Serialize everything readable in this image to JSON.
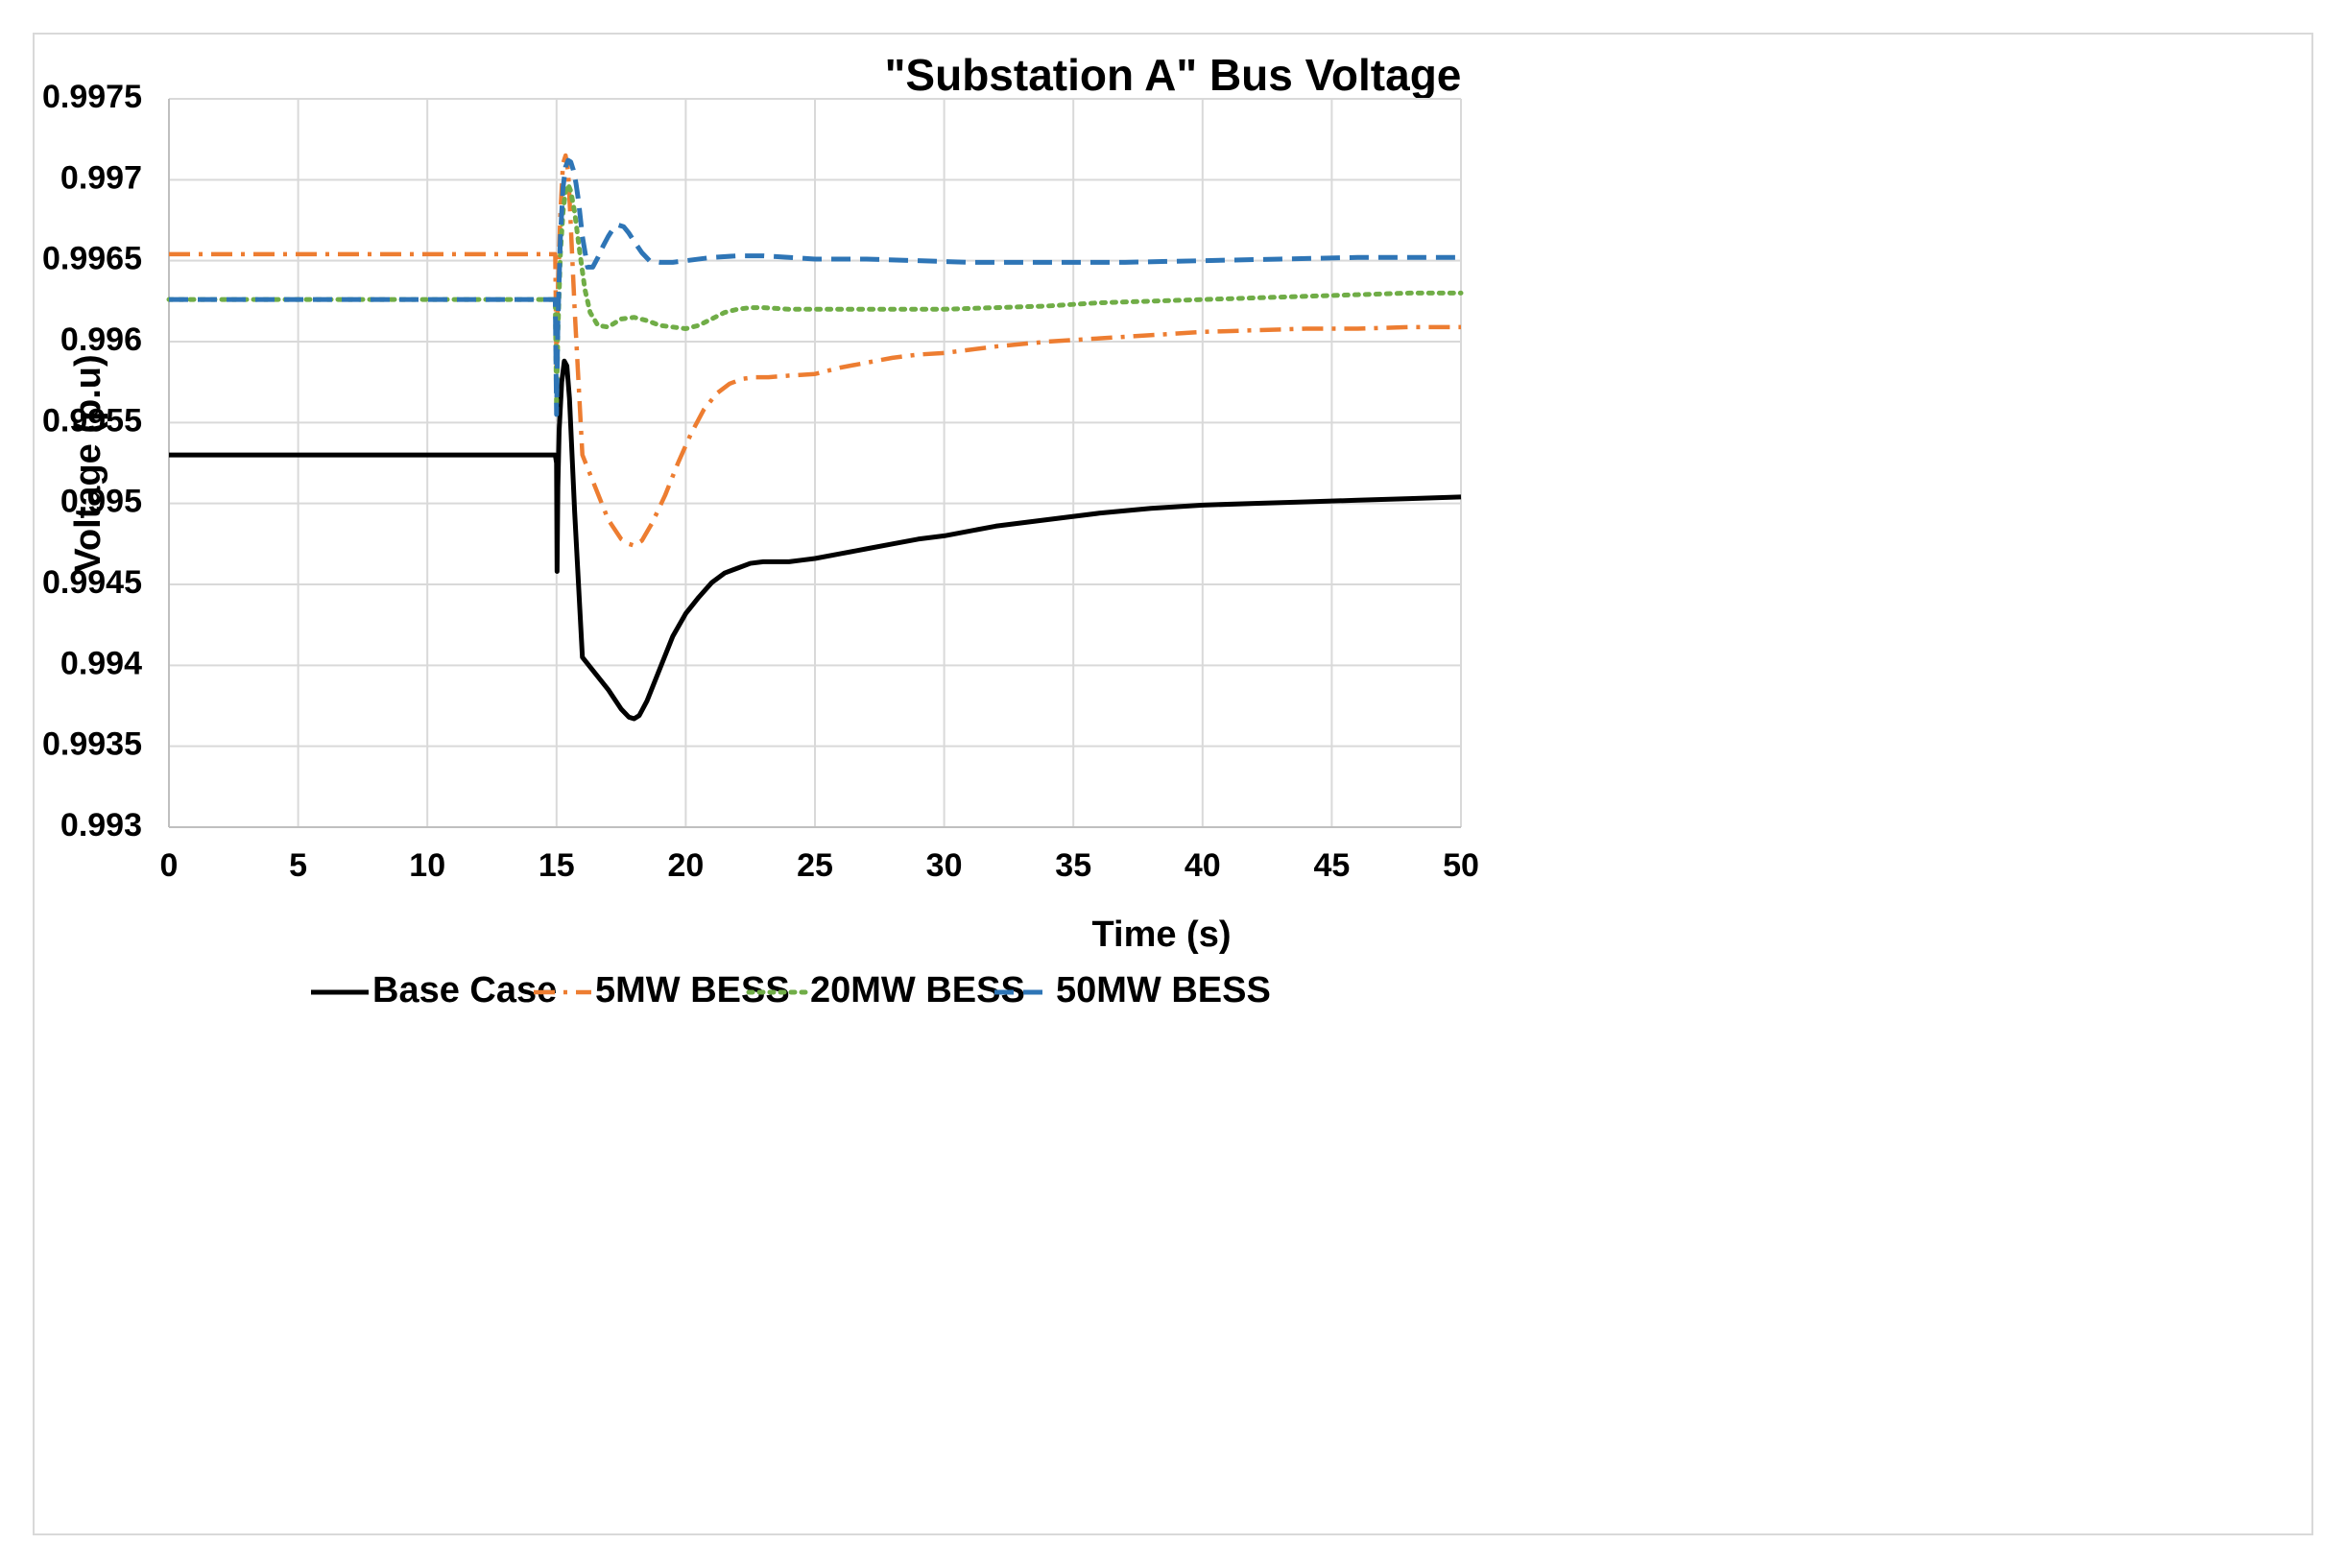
{
  "chart_data": {
    "type": "line",
    "title": "\"Substation A\" Bus Voltage",
    "xlabel": "Time (s)",
    "ylabel": "Voltage (p.u)",
    "xlim": [
      0,
      50
    ],
    "ylim": [
      0.993,
      0.9975
    ],
    "xticks": [
      0,
      5,
      10,
      15,
      20,
      25,
      30,
      35,
      40,
      45,
      50
    ],
    "xtick_labels": [
      "0",
      "5",
      "10",
      "15",
      "20",
      "25",
      "30",
      "35",
      "40",
      "45",
      "50"
    ],
    "yticks": [
      0.993,
      0.9935,
      0.994,
      0.9945,
      0.995,
      0.9955,
      0.996,
      0.9965,
      0.997,
      0.9975
    ],
    "ytick_labels": [
      "0.993",
      "0.9935",
      "0.994",
      "0.9945",
      "0.995",
      "0.9955",
      "0.996",
      "0.9965",
      "0.997",
      "0.9975"
    ],
    "grid": true,
    "legend_position": "bottom",
    "series": [
      {
        "name": "Base Case",
        "color": "#000000",
        "dash": "solid",
        "x": [
          0,
          14.95,
          15.0,
          15.02,
          15.05,
          15.1,
          15.2,
          15.3,
          15.4,
          15.5,
          15.7,
          16.0,
          16.5,
          17.0,
          17.5,
          17.8,
          18.0,
          18.2,
          18.5,
          19.0,
          19.5,
          20.0,
          20.5,
          21.0,
          21.5,
          22.0,
          22.5,
          23.0,
          23.5,
          24.0,
          24.5,
          25.0,
          26.0,
          27.0,
          28.0,
          29.0,
          30.0,
          32.0,
          34.0,
          36.0,
          38.0,
          40.0,
          42.0,
          44.0,
          46.0,
          48.0,
          50.0
        ],
        "y": [
          0.9953,
          0.9953,
          0.99525,
          0.99458,
          0.9951,
          0.99545,
          0.99575,
          0.99588,
          0.99585,
          0.99565,
          0.99495,
          0.99405,
          0.99395,
          0.99385,
          0.99373,
          0.99368,
          0.99367,
          0.99369,
          0.99378,
          0.99398,
          0.99418,
          0.99432,
          0.99442,
          0.99451,
          0.99457,
          0.9946,
          0.99463,
          0.99464,
          0.99464,
          0.99464,
          0.99465,
          0.99466,
          0.99469,
          0.99472,
          0.99475,
          0.99478,
          0.9948,
          0.99486,
          0.9949,
          0.99494,
          0.99497,
          0.99499,
          0.995,
          0.99501,
          0.99502,
          0.99503,
          0.99504
        ]
      },
      {
        "name": "5MW BESS",
        "color": "#ED7D31",
        "dash": "dashdot",
        "x": [
          0,
          14.95,
          15.0,
          15.05,
          15.15,
          15.25,
          15.35,
          15.45,
          15.55,
          15.7,
          16.0,
          16.5,
          17.0,
          17.5,
          17.8,
          18.0,
          18.3,
          18.7,
          19.2,
          19.7,
          20.2,
          20.7,
          21.2,
          21.7,
          22.2,
          22.7,
          23.2,
          24.0,
          25.0,
          26.0,
          27.0,
          28.0,
          29.0,
          30.0,
          32.0,
          34.0,
          36.0,
          38.0,
          40.0,
          42.0,
          44.0,
          46.0,
          48.0,
          50.0
        ],
        "y": [
          0.99654,
          0.99654,
          0.9958,
          0.9963,
          0.9968,
          0.9971,
          0.99715,
          0.99705,
          0.99672,
          0.9962,
          0.9953,
          0.9951,
          0.9949,
          0.99478,
          0.99475,
          0.99474,
          0.99477,
          0.99488,
          0.99505,
          0.99525,
          0.99543,
          0.99558,
          0.99568,
          0.99574,
          0.99577,
          0.99578,
          0.99578,
          0.99579,
          0.9958,
          0.99584,
          0.99587,
          0.9959,
          0.99592,
          0.99593,
          0.99597,
          0.996,
          0.99602,
          0.99604,
          0.99606,
          0.99607,
          0.99608,
          0.99608,
          0.99609,
          0.99609
        ]
      },
      {
        "name": "20MW BESS",
        "color": "#70AD47",
        "dash": "dotted",
        "x": [
          0,
          14.95,
          15.0,
          15.05,
          15.15,
          15.25,
          15.35,
          15.45,
          15.55,
          15.7,
          15.9,
          16.1,
          16.3,
          16.6,
          17.0,
          17.5,
          18.0,
          18.5,
          19.0,
          19.5,
          20.0,
          20.5,
          21.0,
          21.5,
          22.0,
          22.5,
          23.0,
          24.0,
          25.0,
          26.0,
          28.0,
          30.0,
          32.0,
          34.0,
          36.0,
          38.0,
          40.0,
          42.0,
          44.0,
          46.0,
          48.0,
          50.0
        ],
        "y": [
          0.99626,
          0.99626,
          0.9956,
          0.99605,
          0.99655,
          0.9968,
          0.99693,
          0.99697,
          0.99693,
          0.9968,
          0.99655,
          0.99632,
          0.99618,
          0.9961,
          0.99609,
          0.99614,
          0.99615,
          0.99613,
          0.9961,
          0.99609,
          0.99608,
          0.9961,
          0.99614,
          0.99618,
          0.9962,
          0.99621,
          0.99621,
          0.9962,
          0.9962,
          0.9962,
          0.9962,
          0.9962,
          0.99621,
          0.99622,
          0.99624,
          0.99625,
          0.99626,
          0.99627,
          0.99628,
          0.99629,
          0.9963,
          0.9963
        ]
      },
      {
        "name": "50MW BESS",
        "color": "#2E75B6",
        "dash": "dashed",
        "x": [
          0,
          14.95,
          15.0,
          15.05,
          15.15,
          15.25,
          15.35,
          15.45,
          15.55,
          15.65,
          15.75,
          15.85,
          16.0,
          16.2,
          16.4,
          16.6,
          16.8,
          17.0,
          17.2,
          17.4,
          17.6,
          17.8,
          18.0,
          18.3,
          18.6,
          19.0,
          19.5,
          20.0,
          21.0,
          22.0,
          23.0,
          25.0,
          27.0,
          29.0,
          31.0,
          33.0,
          35.0,
          37.0,
          40.0,
          43.0,
          46.0,
          50.0
        ],
        "y": [
          0.99626,
          0.99626,
          0.99555,
          0.9961,
          0.99665,
          0.99695,
          0.99708,
          0.99712,
          0.99711,
          0.99706,
          0.99698,
          0.99687,
          0.99665,
          0.99646,
          0.99646,
          0.99652,
          0.99659,
          0.99665,
          0.9967,
          0.99672,
          0.99671,
          0.99667,
          0.99662,
          0.99655,
          0.9965,
          0.99649,
          0.99649,
          0.9965,
          0.99652,
          0.99653,
          0.99653,
          0.99651,
          0.99651,
          0.9965,
          0.99649,
          0.99649,
          0.99649,
          0.99649,
          0.9965,
          0.99651,
          0.99652,
          0.99652
        ]
      }
    ]
  }
}
